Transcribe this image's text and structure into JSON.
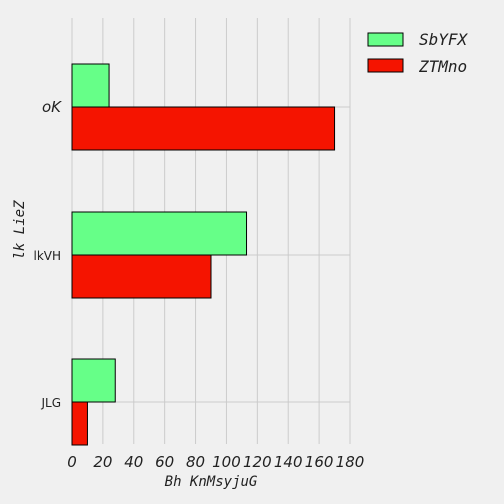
{
  "chart_data": {
    "type": "bar",
    "orientation": "horizontal",
    "categories": [
      "oK",
      "lkVH",
      "JLG"
    ],
    "series": [
      {
        "name": "SbYFX",
        "values": [
          24,
          113,
          28
        ],
        "color": "#66ff88"
      },
      {
        "name": "ZTMno",
        "values": [
          170,
          90,
          10
        ],
        "color": "#f51400"
      }
    ],
    "xlabel": "Bh  KnMsyjuG",
    "ylabel": "lk  LieZ",
    "xlim": [
      0,
      180
    ],
    "xticks": [
      "0",
      "20",
      "40",
      "60",
      "80",
      "100",
      "120",
      "140",
      "160",
      "180"
    ],
    "grid": true,
    "legend_position": "top-right"
  }
}
